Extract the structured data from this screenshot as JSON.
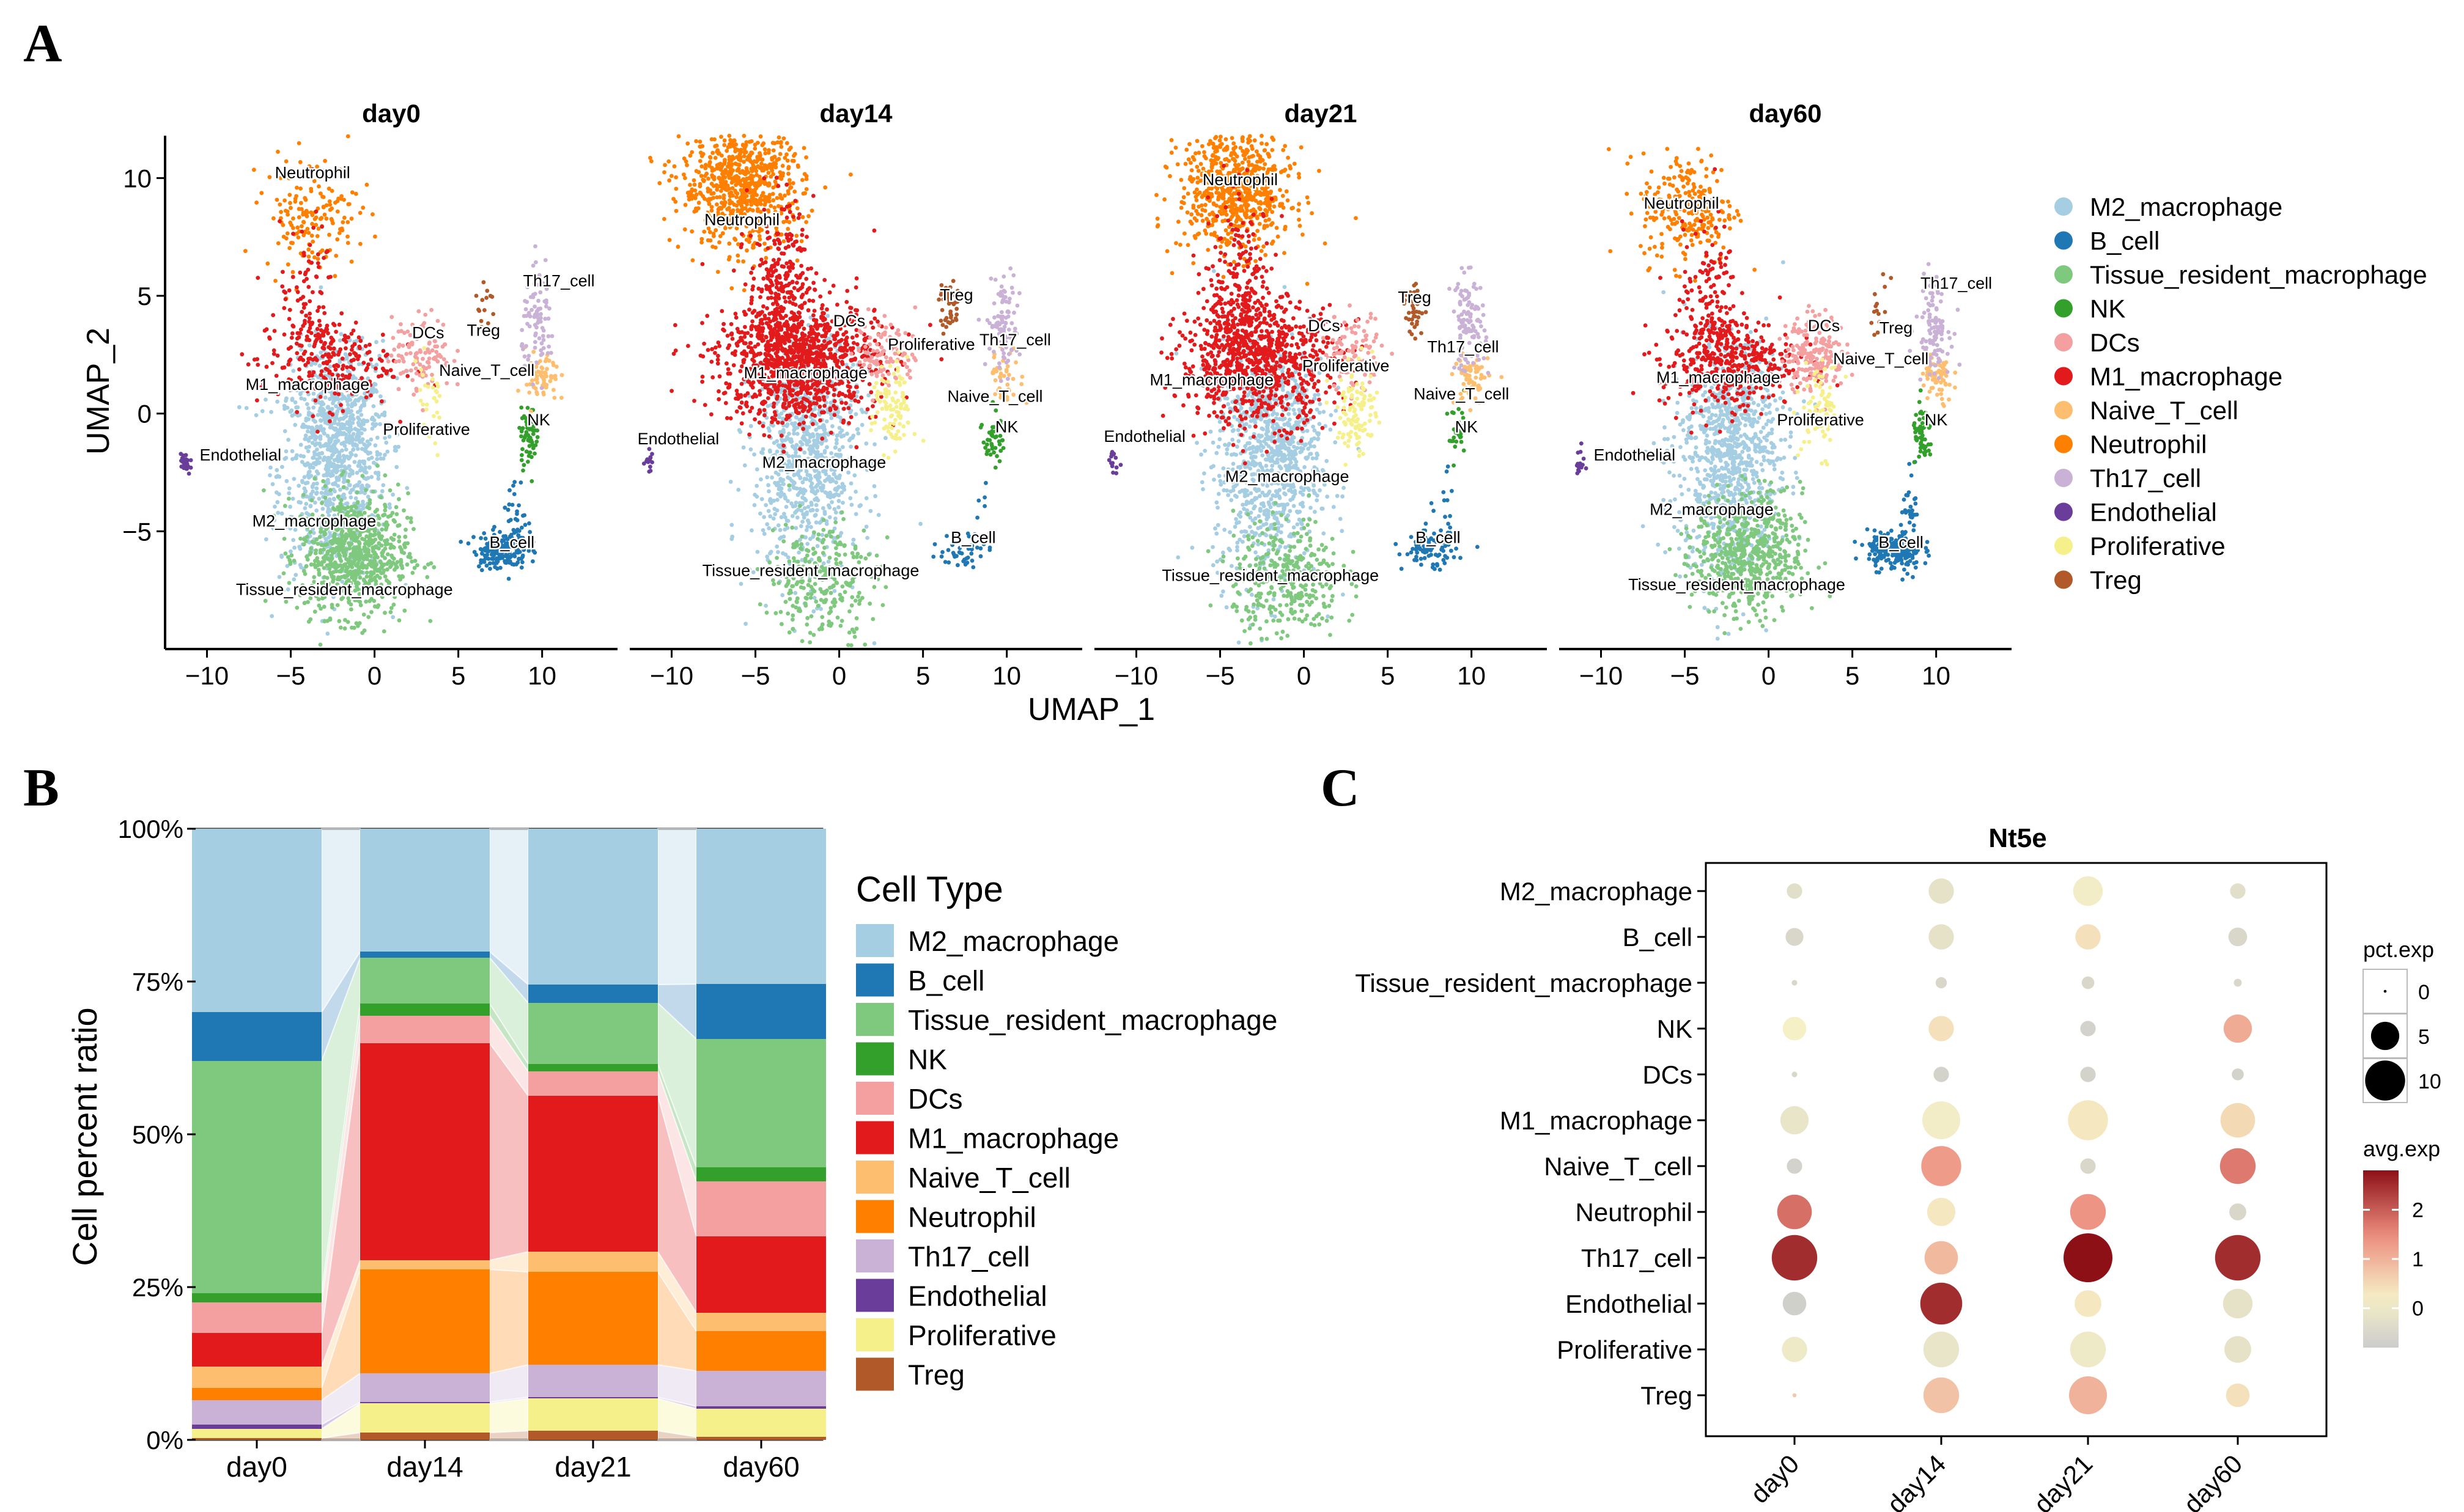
{
  "figure": {
    "panel_labels": [
      "A",
      "B",
      "C"
    ]
  },
  "colors": {
    "M2_macrophage": "#a6cee3",
    "B_cell": "#1f78b4",
    "Tissue_resident_macrophage": "#7fc97f",
    "NK": "#33a02c",
    "DCs": "#f4a0a0",
    "M1_macrophage": "#e31a1c",
    "Naive_T_cell": "#fdbf6f",
    "Neutrophil": "#ff7f00",
    "Th17_cell": "#cab2d6",
    "Endothelial": "#6a3d9a",
    "Proliferative": "#f5f08a",
    "Treg": "#b15928"
  },
  "chart_data": [
    {
      "type": "scatter",
      "name": "UMAP",
      "panels": [
        "day0",
        "day14",
        "day21",
        "day60"
      ],
      "xlabel": "UMAP_1",
      "ylabel": "UMAP_2",
      "xticks": [
        -10,
        -5,
        0,
        5,
        10
      ],
      "xtick_labels": [
        "−10",
        "−5",
        "0",
        "5",
        "10"
      ],
      "yticks": [
        10,
        5,
        0,
        -5
      ],
      "ytick_labels": [
        "10",
        "5",
        "0",
        "−5"
      ],
      "xlim": [
        -12.5,
        14.5
      ],
      "ylim": [
        -10,
        11.8
      ],
      "legend": [
        "M2_macrophage",
        "B_cell",
        "Tissue_resident_macrophage",
        "NK",
        "DCs",
        "M1_macrophage",
        "Naive_T_cell",
        "Neutrophil",
        "Th17_cell",
        "Endothelial",
        "Proliferative",
        "Treg"
      ],
      "labels": [
        [
          {
            "text": "Neutrophil",
            "x": -3.7,
            "y": 10
          },
          {
            "text": "DCs",
            "x": 3.2,
            "y": 3.2
          },
          {
            "text": "Treg",
            "x": 6.5,
            "y": 3.3
          },
          {
            "text": "Th17_cell",
            "x": 11,
            "y": 5.4
          },
          {
            "text": "Naive_T_cell",
            "x": 6.7,
            "y": 1.6
          },
          {
            "text": "M1_macrophage",
            "x": -4,
            "y": 1
          },
          {
            "text": "NK",
            "x": 9.8,
            "y": -0.5
          },
          {
            "text": "Proliferative",
            "x": 3.1,
            "y": -0.9
          },
          {
            "text": "Endothelial",
            "x": -8,
            "y": -2
          },
          {
            "text": "M2_macrophage",
            "x": -3.6,
            "y": -4.8
          },
          {
            "text": "B_cell",
            "x": 8.2,
            "y": -5.7
          },
          {
            "text": "Tissue_resident_macrophage",
            "x": -1.8,
            "y": -7.7
          }
        ],
        [
          {
            "text": "Neutrophil",
            "x": -5.8,
            "y": 8
          },
          {
            "text": "DCs",
            "x": 0.6,
            "y": 3.7
          },
          {
            "text": "Treg",
            "x": 7,
            "y": 4.8
          },
          {
            "text": "Th17_cell",
            "x": 10.5,
            "y": 2.9
          },
          {
            "text": "Proliferative",
            "x": 5.5,
            "y": 2.7
          },
          {
            "text": "M1_macrophage",
            "x": -2,
            "y": 1.5
          },
          {
            "text": "Naive_T_cell",
            "x": 9.3,
            "y": 0.5
          },
          {
            "text": "NK",
            "x": 10,
            "y": -0.8
          },
          {
            "text": "Endothelial",
            "x": -9.6,
            "y": -1.3
          },
          {
            "text": "M2_macrophage",
            "x": -0.9,
            "y": -2.3
          },
          {
            "text": "B_cell",
            "x": 8,
            "y": -5.5
          },
          {
            "text": "Tissue_resident_macrophage",
            "x": -1.7,
            "y": -6.9
          }
        ],
        [
          {
            "text": "Neutrophil",
            "x": -3.8,
            "y": 9.7
          },
          {
            "text": "DCs",
            "x": 1.2,
            "y": 3.5
          },
          {
            "text": "Treg",
            "x": 6.6,
            "y": 4.7
          },
          {
            "text": "Th17_cell",
            "x": 9.5,
            "y": 2.6
          },
          {
            "text": "Proliferative",
            "x": 2.5,
            "y": 1.8
          },
          {
            "text": "M1_macrophage",
            "x": -5.5,
            "y": 1.2
          },
          {
            "text": "Naive_T_cell",
            "x": 9.4,
            "y": 0.6
          },
          {
            "text": "NK",
            "x": 9.7,
            "y": -0.8
          },
          {
            "text": "Endothelial",
            "x": -9.5,
            "y": -1.2
          },
          {
            "text": "M2_macrophage",
            "x": -1,
            "y": -2.9
          },
          {
            "text": "B_cell",
            "x": 8,
            "y": -5.5
          },
          {
            "text": "Tissue_resident_macrophage",
            "x": -2,
            "y": -7.1
          }
        ],
        [
          {
            "text": "Neutrophil",
            "x": -5.2,
            "y": 8.7
          },
          {
            "text": "DCs",
            "x": 3.3,
            "y": 3.5
          },
          {
            "text": "Treg",
            "x": 7.6,
            "y": 3.4
          },
          {
            "text": "Th17_cell",
            "x": 11.2,
            "y": 5.3
          },
          {
            "text": "Naive_T_cell",
            "x": 6.7,
            "y": 2.1
          },
          {
            "text": "M1_macrophage",
            "x": -3,
            "y": 1.3
          },
          {
            "text": "Proliferative",
            "x": 3.1,
            "y": -0.5
          },
          {
            "text": "NK",
            "x": 10,
            "y": -0.5
          },
          {
            "text": "Endothelial",
            "x": -8,
            "y": -2
          },
          {
            "text": "M2_macrophage",
            "x": -3.4,
            "y": -4.3
          },
          {
            "text": "B_cell",
            "x": 7.9,
            "y": -5.7
          },
          {
            "text": "Tissue_resident_macrophage",
            "x": -1.9,
            "y": -7.5
          }
        ]
      ]
    },
    {
      "type": "area",
      "name": "stacked-proportion",
      "categories": [
        "day0",
        "day14",
        "day21",
        "day60"
      ],
      "ylabel": "Cell percent ratio",
      "ytick_labels": [
        "0%",
        "25%",
        "50%",
        "75%",
        "100%"
      ],
      "ylim": [
        0,
        100
      ],
      "legend_title": "Cell Type",
      "legend": [
        "M2_macrophage",
        "B_cell",
        "Tissue_resident_macrophage",
        "NK",
        "DCs",
        "M1_macrophage",
        "Naive_T_cell",
        "Neutrophil",
        "Th17_cell",
        "Endothelial",
        "Proliferative",
        "Treg"
      ],
      "stack_order_bottom_to_top": [
        "Treg",
        "Proliferative",
        "Endothelial",
        "Th17_cell",
        "Neutrophil",
        "Naive_T_cell",
        "M1_macrophage",
        "DCs",
        "NK",
        "Tissue_resident_macrophage",
        "B_cell",
        "M2_macrophage"
      ],
      "series": [
        {
          "name": "Treg",
          "values": [
            0.3,
            1.2,
            1.5,
            0.5
          ]
        },
        {
          "name": "Proliferative",
          "values": [
            1.5,
            4.8,
            5.3,
            4.6
          ]
        },
        {
          "name": "Endothelial",
          "values": [
            0.7,
            0.2,
            0.2,
            0.4
          ]
        },
        {
          "name": "Th17_cell",
          "values": [
            4,
            4.7,
            5.3,
            5.8
          ]
        },
        {
          "name": "Neutrophil",
          "values": [
            2,
            17,
            15.2,
            6.5
          ]
        },
        {
          "name": "Naive_T_cell",
          "values": [
            3.5,
            1.5,
            3.3,
            3
          ]
        },
        {
          "name": "M1_macrophage",
          "values": [
            5.5,
            35.5,
            25.5,
            12.5
          ]
        },
        {
          "name": "DCs",
          "values": [
            5,
            4.5,
            4,
            9
          ]
        },
        {
          "name": "NK",
          "values": [
            1.5,
            2,
            1.2,
            2.3
          ]
        },
        {
          "name": "Tissue_resident_macrophage",
          "values": [
            38,
            7.5,
            10,
            21
          ]
        },
        {
          "name": "B_cell",
          "values": [
            8,
            1,
            3,
            9
          ]
        },
        {
          "name": "M2_macrophage",
          "values": [
            30,
            20.1,
            25.5,
            25.4
          ]
        }
      ]
    },
    {
      "type": "scatter",
      "name": "dotplot",
      "title": "Nt5e",
      "categories": [
        "day0",
        "day14",
        "day21",
        "day60"
      ],
      "rows": [
        "M2_macrophage",
        "B_cell",
        "Tissue_resident_macrophage",
        "NK",
        "DCs",
        "M1_macrophage",
        "Naive_T_cell",
        "Neutrophil",
        "Th17_cell",
        "Endothelial",
        "Proliferative",
        "Treg"
      ],
      "size_legend_title": "pct.exp",
      "size_legend_values": [
        "0",
        "5",
        "10"
      ],
      "color_legend_title": "avg.exp",
      "color_legend_ticks": [
        "2",
        "1",
        "0"
      ],
      "color_range": [
        -0.8,
        2.8
      ],
      "pct_exp": [
        [
          1.5,
          4,
          5.5,
          1.5
        ],
        [
          2,
          4,
          4,
          2.2
        ],
        [
          0.2,
          0.8,
          1,
          0.4
        ],
        [
          3.5,
          4,
          1.5,
          5
        ],
        [
          0.2,
          1.5,
          1.5,
          0.9
        ],
        [
          5,
          9,
          10,
          7.5
        ],
        [
          1.5,
          10,
          1.5,
          8
        ],
        [
          7.5,
          5,
          8,
          1.8
        ],
        [
          13,
          7,
          15,
          13
        ],
        [
          3.5,
          11,
          4.5,
          5.5
        ],
        [
          4,
          8,
          8,
          4.5
        ],
        [
          0.1,
          8,
          9,
          3.5
        ]
      ],
      "avg_exp": [
        [
          -0.3,
          -0.2,
          0.1,
          -0.3
        ],
        [
          -0.5,
          -0.2,
          0.4,
          -0.5
        ],
        [
          -0.5,
          -0.5,
          -0.5,
          -0.5
        ],
        [
          0.2,
          0.4,
          -0.6,
          1.1
        ],
        [
          -0.5,
          -0.6,
          -0.6,
          -0.6
        ],
        [
          -0.1,
          0.1,
          0.3,
          0.5
        ],
        [
          -0.6,
          1.3,
          -0.5,
          1.7
        ],
        [
          1.8,
          0.3,
          1.4,
          -0.5
        ],
        [
          2.5,
          0.9,
          2.8,
          2.5
        ],
        [
          -0.7,
          2.5,
          0.3,
          -0.2
        ],
        [
          0,
          -0.1,
          0,
          -0.2
        ],
        [
          0.7,
          0.8,
          1.0,
          0.4
        ]
      ]
    }
  ]
}
